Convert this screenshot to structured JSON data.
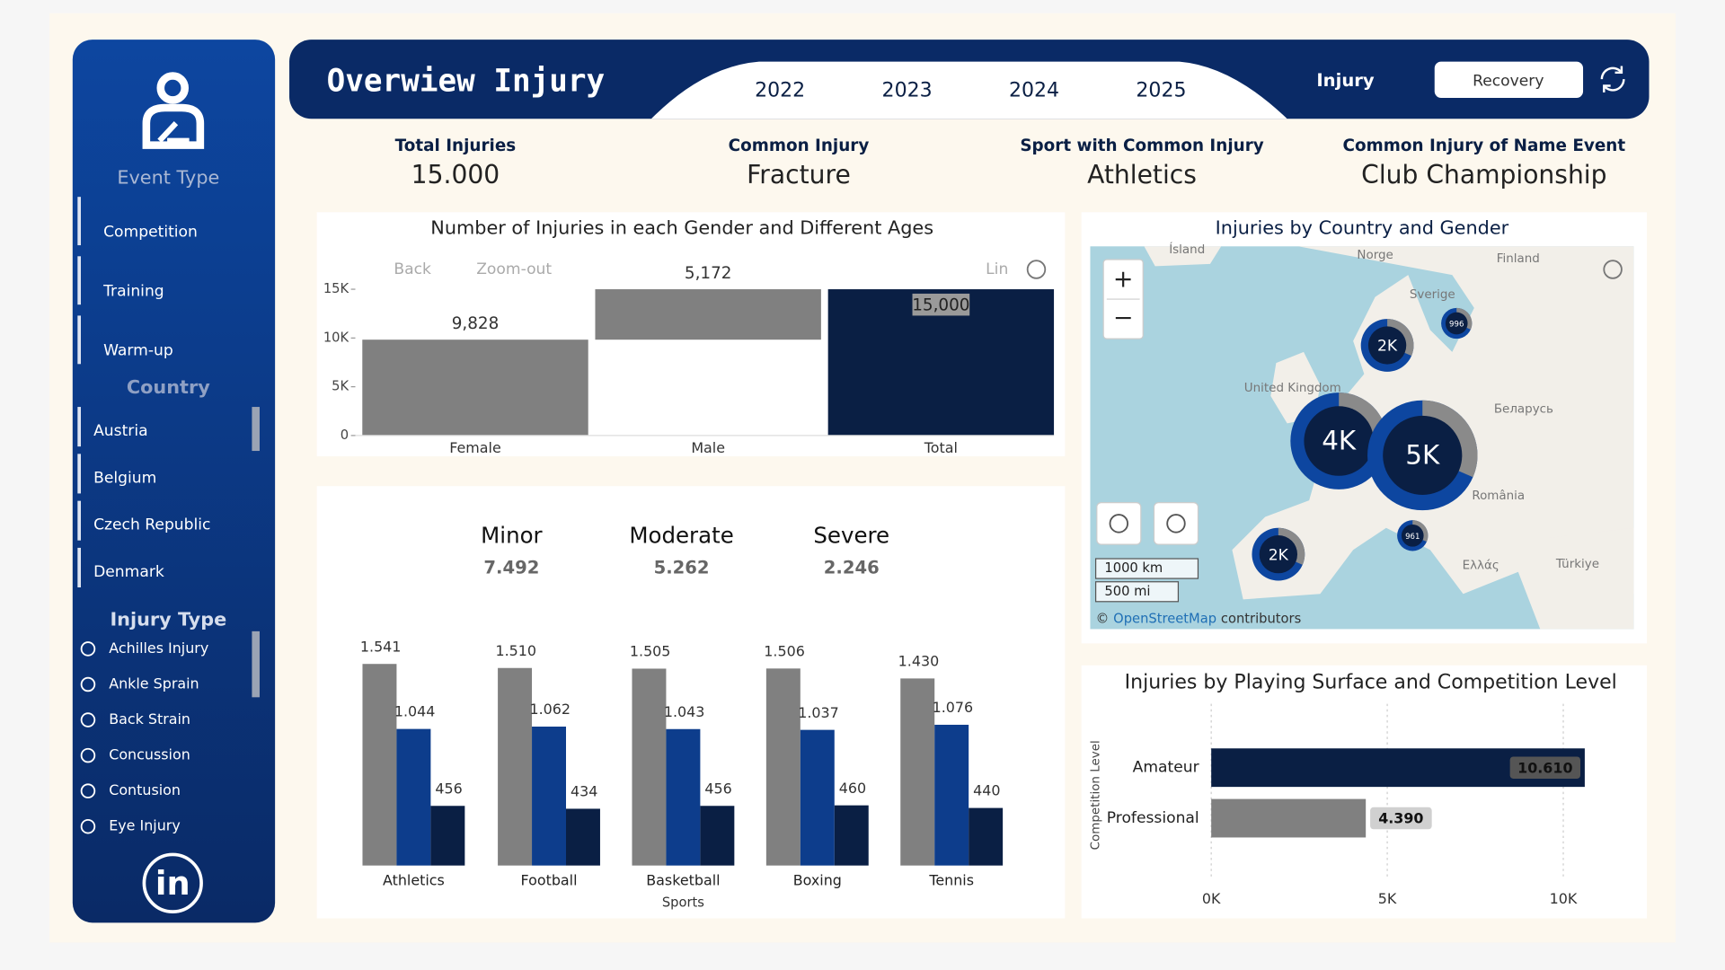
{
  "sidebar": {
    "event_type": {
      "title": "Event Type",
      "items": [
        "Competition",
        "Training",
        "Warm-up"
      ]
    },
    "country": {
      "title": "Country",
      "items": [
        "Austria",
        "Belgium",
        "Czech Republic",
        "Denmark"
      ]
    },
    "injury_type": {
      "title": "Injury Type",
      "items": [
        "Achilles Injury",
        "Ankle Sprain",
        "Back Strain",
        "Concussion",
        "Contusion",
        "Eye Injury"
      ]
    }
  },
  "header": {
    "title": "Overwiew Injury",
    "years": [
      "2022",
      "2023",
      "2024",
      "2025"
    ],
    "tabs": [
      "Injury",
      "Recovery"
    ]
  },
  "kpis": [
    {
      "label": "Total Injuries",
      "value": "15.000"
    },
    {
      "label": "Common Injury",
      "value": "Fracture"
    },
    {
      "label": "Sport with Common Injury",
      "value": "Athletics"
    },
    {
      "label": "Common Injury of Name Event",
      "value": "Club Championship"
    }
  ],
  "map": {
    "title": "Injuries by Country and Gender",
    "places": [
      "Ísland",
      "Norge",
      "Finland",
      "Sverige",
      "United Kingdom",
      "Беларусь",
      "România",
      "Ελλάς",
      "Türkiye"
    ],
    "bubbles": [
      "2K",
      "996",
      "4K",
      "5K",
      "961",
      "2K"
    ],
    "scale": [
      "1000 km",
      "500 mi"
    ],
    "attribution": [
      "©",
      "OpenStreetMap",
      "contributors"
    ]
  },
  "chart_data": [
    {
      "type": "waterfall",
      "title": "Number of Injuries in each Gender and Different Ages",
      "toolbar": [
        "Back",
        "Zoom-out",
        "Lin"
      ],
      "categories": [
        "Female",
        "Male",
        "Total"
      ],
      "values": [
        9828,
        5172,
        15000
      ],
      "value_labels": [
        "9,828",
        "5,172",
        "15,000"
      ],
      "colors": [
        "#808080",
        "#808080",
        "#0a1f44"
      ],
      "ylim": [
        0,
        15000
      ],
      "yticks": [
        0,
        {
          "value": 5000,
          "label": "5K"
        },
        {
          "value": 10000,
          "label": "10K"
        },
        {
          "value": 15000,
          "label": "15K"
        }
      ]
    },
    {
      "type": "grouped_bar",
      "xlabel": "Sports",
      "categories": [
        "Athletics",
        "Football",
        "Basketball",
        "Boxing",
        "Tennis"
      ],
      "series": [
        {
          "name": "Minor",
          "total": "7.492",
          "color": "#808080",
          "values": [
            1541,
            1510,
            1505,
            1506,
            1430
          ],
          "value_labels": [
            "1.541",
            "1.510",
            "1.505",
            "1.506",
            "1.430"
          ]
        },
        {
          "name": "Moderate",
          "total": "5.262",
          "color": "#0d3d8c",
          "values": [
            1044,
            1062,
            1043,
            1037,
            1076
          ],
          "value_labels": [
            "1.044",
            "1.062",
            "1.043",
            "1.037",
            "1.076"
          ]
        },
        {
          "name": "Severe",
          "total": "2.246",
          "color": "#0a1f44",
          "values": [
            456,
            434,
            456,
            460,
            440
          ]
        }
      ],
      "ylim": [
        0,
        1900
      ]
    },
    {
      "type": "hbar",
      "title": "Injuries by Playing Surface and Competition Level",
      "ylabel": "Competition Level",
      "categories": [
        "Amateur",
        "Professional"
      ],
      "values": [
        10610,
        4390
      ],
      "value_labels": [
        "10.610",
        "4.390"
      ],
      "colors": [
        "#0a1f44",
        "#808080"
      ],
      "xlim": [
        0,
        11000
      ],
      "xticks": [
        {
          "value": 0,
          "label": "0K"
        },
        {
          "value": 5000,
          "label": "5K"
        },
        {
          "value": 10000,
          "label": "10K"
        }
      ],
      "grid": true
    }
  ]
}
